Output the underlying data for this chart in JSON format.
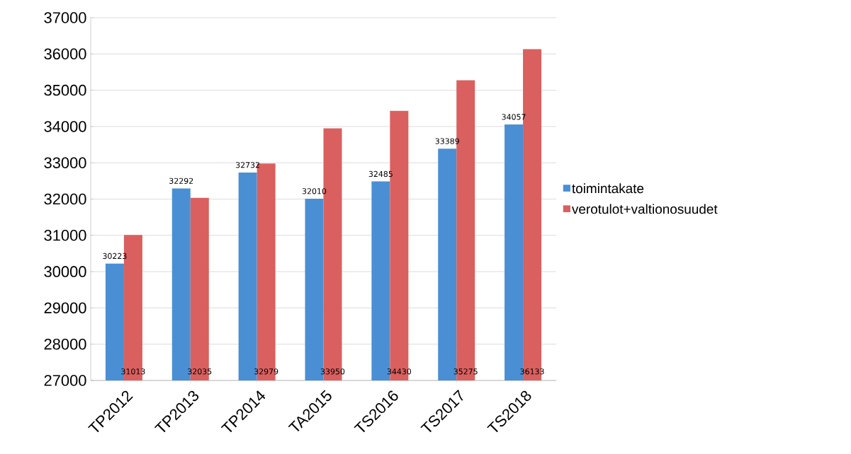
{
  "chart_data": {
    "type": "bar",
    "categories": [
      "TP2012",
      "TP2013",
      "TP2014",
      "TA2015",
      "TS2016",
      "TS2017",
      "TS2018"
    ],
    "series": [
      {
        "name": "toimintakate",
        "color": "#4a8fd4",
        "values": [
          30223,
          32292,
          32732,
          32010,
          32485,
          33389,
          34057
        ]
      },
      {
        "name": "verotulot+valtionosuudet",
        "color": "#d9605f",
        "values": [
          31013,
          32035,
          32979,
          33950,
          34430,
          35275,
          36133
        ]
      }
    ],
    "ylim": [
      27000,
      37000
    ],
    "yticks": [
      27000,
      28000,
      29000,
      30000,
      31000,
      32000,
      33000,
      34000,
      35000,
      36000,
      37000
    ],
    "grid": "y",
    "legend": "right",
    "data_labels": true
  }
}
